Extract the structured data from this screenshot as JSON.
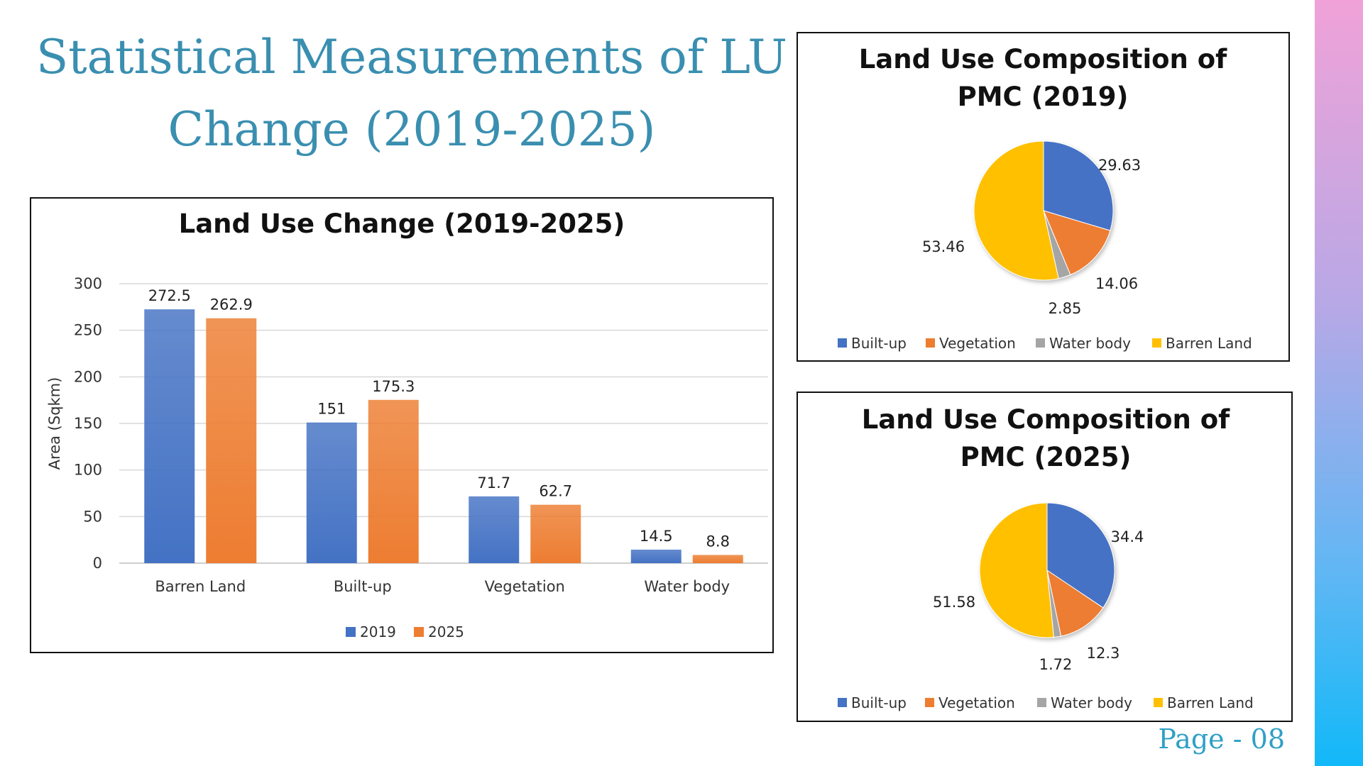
{
  "slide": {
    "title_line1": "Statistical Measurements of LU",
    "title_line2": "Change (2019-2025)",
    "page_label": "Page - 08"
  },
  "colors": {
    "accent_title": "#3a8fb0",
    "series_2019": "#4472c4",
    "series_2025": "#ed7d31",
    "builtup": "#4472c4",
    "vegetation": "#ed7d31",
    "water": "#a5a5a5",
    "barren": "#ffc000"
  },
  "chart_data": [
    {
      "type": "bar",
      "title": "Land Use Change (2019-2025)",
      "xlabel": "",
      "ylabel": "Area (Sqkm)",
      "ylim": [
        0,
        300
      ],
      "yticks": [
        0,
        50,
        100,
        150,
        200,
        250,
        300
      ],
      "categories": [
        "Barren Land",
        "Built-up",
        "Vegetation",
        "Water body"
      ],
      "series": [
        {
          "name": "2019",
          "values": [
            272.5,
            151,
            71.7,
            14.5
          ]
        },
        {
          "name": "2025",
          "values": [
            262.9,
            175.3,
            62.7,
            8.8
          ]
        }
      ],
      "grid": true,
      "legend": "bottom"
    },
    {
      "type": "pie",
      "title": "Land Use Composition of PMC (2019)",
      "title_lines": [
        "Land Use Composition of",
        "PMC (2019)"
      ],
      "labels": [
        "Built-up",
        "Vegetation",
        "Water body",
        "Barren Land"
      ],
      "values": [
        29.63,
        14.06,
        2.85,
        53.46
      ],
      "legend": "bottom"
    },
    {
      "type": "pie",
      "title": "Land Use Composition of PMC (2025)",
      "title_lines": [
        "Land Use Composition of",
        "PMC (2025)"
      ],
      "labels": [
        "Built-up",
        "Vegetation",
        "Water body",
        "Barren Land"
      ],
      "values": [
        34.4,
        12.3,
        1.72,
        51.58
      ],
      "legend": "bottom"
    }
  ]
}
